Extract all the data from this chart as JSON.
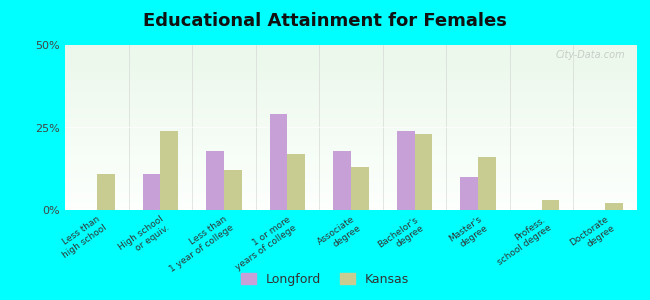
{
  "title": "Educational Attainment for Females",
  "categories": [
    "Less than\nhigh school",
    "High school\nor equiv.",
    "Less than\n1 year of college",
    "1 or more\nyears of college",
    "Associate\ndegree",
    "Bachelor's\ndegree",
    "Master's\ndegree",
    "Profess.\nschool degree",
    "Doctorate\ndegree"
  ],
  "longford_values": [
    0,
    11,
    18,
    29,
    18,
    24,
    10,
    0,
    0
  ],
  "kansas_values": [
    11,
    24,
    12,
    17,
    13,
    23,
    16,
    3,
    2
  ],
  "longford_color": "#c8a0d8",
  "kansas_color": "#c8cc90",
  "background_color": "#00ffff",
  "ylim": [
    0,
    50
  ],
  "yticks": [
    0,
    25,
    50
  ],
  "yticklabels": [
    "0%",
    "25%",
    "50%"
  ],
  "legend_labels": [
    "Longford",
    "Kansas"
  ],
  "watermark": "City-Data.com",
  "bar_width": 0.28
}
